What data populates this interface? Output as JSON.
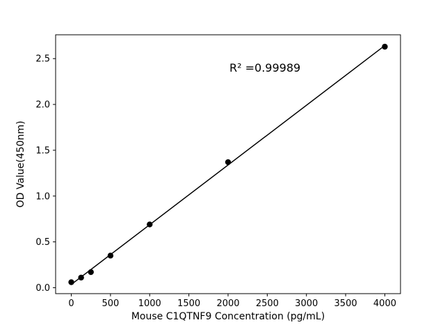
{
  "chart_data": {
    "type": "scatter",
    "title": "",
    "xlabel": "Mouse C1QTNF9 Concentration (pg/mL)",
    "ylabel": "OD Value(450nm)",
    "annotation": {
      "text": "R² =0.99989"
    },
    "points": [
      {
        "x": 0,
        "y": 0.06
      },
      {
        "x": 125,
        "y": 0.11
      },
      {
        "x": 250,
        "y": 0.17
      },
      {
        "x": 500,
        "y": 0.35
      },
      {
        "x": 1000,
        "y": 0.69
      },
      {
        "x": 2000,
        "y": 1.37
      },
      {
        "x": 4000,
        "y": 2.63
      }
    ],
    "fit": {
      "type": "linear"
    },
    "xlim": [
      -200,
      4200
    ],
    "ylim": [
      -0.065,
      2.76
    ],
    "xticks": [
      {
        "value": 0,
        "label": "0"
      },
      {
        "value": 500,
        "label": "500"
      },
      {
        "value": 1000,
        "label": "1000"
      },
      {
        "value": 1500,
        "label": "1500"
      },
      {
        "value": 2000,
        "label": "2000"
      },
      {
        "value": 2500,
        "label": "2500"
      },
      {
        "value": 3000,
        "label": "3000"
      },
      {
        "value": 3500,
        "label": "3500"
      },
      {
        "value": 4000,
        "label": "4000"
      }
    ],
    "yticks": [
      {
        "value": 0.0,
        "label": "0.0"
      },
      {
        "value": 0.5,
        "label": "0.5"
      },
      {
        "value": 1.0,
        "label": "1.0"
      },
      {
        "value": 1.5,
        "label": "1.5"
      },
      {
        "value": 2.0,
        "label": "2.0"
      },
      {
        "value": 2.5,
        "label": "2.5"
      }
    ],
    "marker_color": "#000000",
    "line_color": "#000000",
    "grid": false,
    "legend_position": "none"
  }
}
